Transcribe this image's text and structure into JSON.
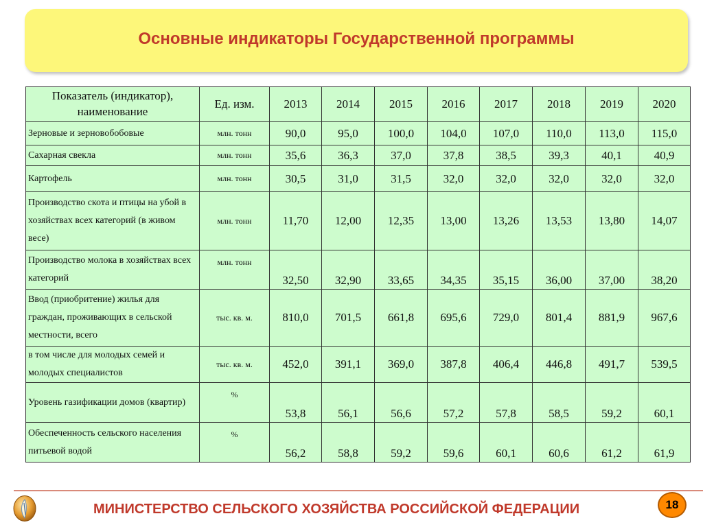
{
  "title": "Основные индикаторы Государственной программы",
  "table": {
    "header": {
      "name": "Показатель (индикатор), наименование",
      "unit": "Ед. изм.",
      "years": [
        "2013",
        "2014",
        "2015",
        "2016",
        "2017",
        "2018",
        "2019",
        "2020"
      ]
    },
    "rows": [
      {
        "name": "Зерновые и зерновобобовые",
        "unit": "млн. тонн",
        "values": [
          "90,0",
          "95,0",
          "100,0",
          "104,0",
          "107,0",
          "110,0",
          "113,0",
          "115,0"
        ]
      },
      {
        "name": "Сахарная свекла",
        "unit": "млн. тонн",
        "values": [
          "35,6",
          "36,3",
          "37,0",
          "37,8",
          "38,5",
          "39,3",
          "40,1",
          "40,9"
        ]
      },
      {
        "name": "Картофель",
        "unit": "млн. тонн",
        "values": [
          "30,5",
          "31,0",
          "31,5",
          "32,0",
          "32,0",
          "32,0",
          "32,0",
          "32,0"
        ]
      },
      {
        "name": "Производство скота и птицы на убой в хозяйствах всех категорий (в живом весе)",
        "unit": "млн. тонн",
        "values": [
          "11,70",
          "12,00",
          "12,35",
          "13,00",
          "13,26",
          "13,53",
          "13,80",
          "14,07"
        ]
      },
      {
        "name": "Производство молока в хозяйствах всех категорий",
        "unit": "млн. тонн",
        "values": [
          "32,50",
          "32,90",
          "33,65",
          "34,35",
          "35,15",
          "36,00",
          "37,00",
          "38,20"
        ]
      },
      {
        "name": "Ввод (приобритение) жилья для граждан, проживающих в сельской местности, всего",
        "unit": "тыс. кв. м.",
        "values": [
          "810,0",
          "701,5",
          "661,8",
          "695,6",
          "729,0",
          "801,4",
          "881,9",
          "967,6"
        ]
      },
      {
        "name": "в том числе для молодых семей и молодых специалистов",
        "unit": "тыс. кв. м.",
        "values": [
          "452,0",
          "391,1",
          "369,0",
          "387,8",
          "406,4",
          "446,8",
          "491,7",
          "539,5"
        ]
      },
      {
        "name": "Уровень газификации домов (квартир)",
        "unit": "%",
        "values": [
          "53,8",
          "56,1",
          "56,6",
          "57,2",
          "57,8",
          "58,5",
          "59,2",
          "60,1"
        ]
      },
      {
        "name": "Обеспеченность сельского населения питьевой водой",
        "unit": "%",
        "values": [
          "56,2",
          "58,8",
          "59,2",
          "59,6",
          "60,1",
          "60,6",
          "61,2",
          "61,9"
        ]
      }
    ]
  },
  "footer": {
    "ministry": "МИНИСТЕРСТВО СЕЛЬСКОГО ХОЗЯЙСТВА РОССИЙСКОЙ ФЕДЕРАЦИИ",
    "page_number": "18",
    "emblem_icon": "ministry-emblem-icon"
  },
  "colors": {
    "title_banner": "#fdf77a",
    "title_text": "#c0392b",
    "table_cell": "#cdfccd",
    "page_badge": "#ff8800"
  }
}
